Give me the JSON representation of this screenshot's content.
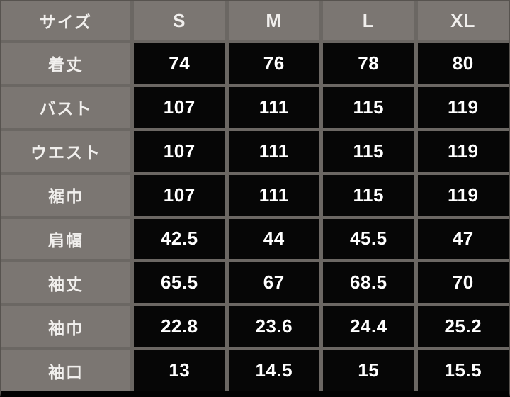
{
  "chart_data": {
    "type": "table",
    "title": "size-chart",
    "header_label": "サイズ",
    "columns": [
      "S",
      "M",
      "L",
      "XL"
    ],
    "rows": [
      {
        "label": "着丈",
        "values": [
          "74",
          "76",
          "78",
          "80"
        ]
      },
      {
        "label": "バスト",
        "values": [
          "107",
          "111",
          "115",
          "119"
        ]
      },
      {
        "label": "ウエスト",
        "values": [
          "107",
          "111",
          "115",
          "119"
        ]
      },
      {
        "label": "裾巾",
        "values": [
          "107",
          "111",
          "115",
          "119"
        ]
      },
      {
        "label": "肩幅",
        "values": [
          "42.5",
          "44",
          "45.5",
          "47"
        ]
      },
      {
        "label": "袖丈",
        "values": [
          "65.5",
          "67",
          "68.5",
          "70"
        ]
      },
      {
        "label": "袖巾",
        "values": [
          "22.8",
          "23.6",
          "24.4",
          "25.2"
        ]
      },
      {
        "label": "袖口",
        "values": [
          "13",
          "14.5",
          "15",
          "15.5"
        ]
      }
    ],
    "colors": {
      "cell_gray": "#7b7672",
      "grid": "#6b6763",
      "cell_black": "#060606",
      "bottom_bar": "#020202",
      "header_text": "#f1efed",
      "value_text": "#ffffff"
    },
    "layout_hints": {
      "legend": "none",
      "grid_on": true
    }
  }
}
